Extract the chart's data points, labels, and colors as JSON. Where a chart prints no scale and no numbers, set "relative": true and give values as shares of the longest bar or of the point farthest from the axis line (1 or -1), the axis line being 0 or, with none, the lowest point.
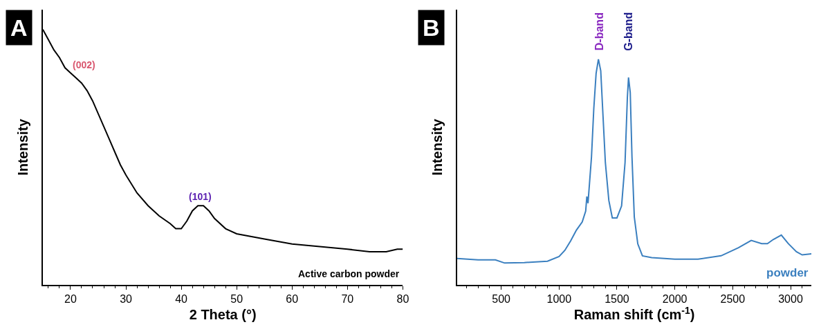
{
  "chart_data": [
    {
      "type": "line",
      "relative": true,
      "xlabel": "2 Theta (°)",
      "ylabel": "Intensity",
      "xlim": [
        15,
        80
      ],
      "xticks": [
        20,
        30,
        40,
        50,
        60,
        70,
        80
      ],
      "marker": "none",
      "line_style": "solid",
      "annotations": [
        "A",
        "(002)",
        "(101)",
        "Active carbon powder"
      ],
      "series": [
        {
          "color": "#000000",
          "x": [
            15,
            16,
            17,
            18,
            19,
            20,
            21,
            22,
            23,
            24,
            25,
            26,
            27,
            28,
            29,
            30,
            32,
            34,
            36,
            38,
            39,
            40,
            41,
            42,
            43,
            44,
            45,
            46,
            48,
            50,
            55,
            60,
            65,
            70,
            74,
            77,
            79,
            80
          ],
          "values": [
            1.0,
            0.96,
            0.92,
            0.89,
            0.85,
            0.83,
            0.81,
            0.79,
            0.76,
            0.72,
            0.67,
            0.62,
            0.57,
            0.52,
            0.47,
            0.43,
            0.36,
            0.31,
            0.27,
            0.24,
            0.22,
            0.22,
            0.25,
            0.29,
            0.31,
            0.31,
            0.29,
            0.26,
            0.22,
            0.2,
            0.18,
            0.16,
            0.15,
            0.14,
            0.13,
            0.13,
            0.14,
            0.14
          ]
        }
      ]
    },
    {
      "type": "line",
      "relative": true,
      "xlabel": "Raman shift (cm$^{-1}$)",
      "ylabel": "Intensity",
      "xlim": [
        120,
        3180
      ],
      "xticks": [
        500,
        1000,
        1500,
        2000,
        2500,
        3000
      ],
      "marker": "none",
      "line_style": "solid",
      "annotations": [
        "B",
        "D-band",
        "G-band",
        "powder"
      ],
      "series": [
        {
          "color": "#3a7fbf",
          "x": [
            120,
            300,
            450,
            530,
            700,
            900,
            1000,
            1050,
            1100,
            1150,
            1200,
            1230,
            1240,
            1250,
            1280,
            1300,
            1320,
            1340,
            1360,
            1380,
            1400,
            1430,
            1460,
            1500,
            1540,
            1570,
            1590,
            1600,
            1615,
            1630,
            1650,
            1680,
            1720,
            1800,
            2000,
            2200,
            2400,
            2550,
            2660,
            2750,
            2800,
            2850,
            2920,
            2980,
            3050,
            3100,
            3180
          ],
          "values": [
            0.117,
            0.111,
            0.111,
            0.097,
            0.099,
            0.105,
            0.126,
            0.153,
            0.195,
            0.243,
            0.279,
            0.327,
            0.392,
            0.362,
            0.566,
            0.781,
            0.937,
            1.0,
            0.949,
            0.745,
            0.542,
            0.374,
            0.297,
            0.297,
            0.35,
            0.542,
            0.829,
            0.919,
            0.852,
            0.566,
            0.301,
            0.182,
            0.129,
            0.121,
            0.114,
            0.114,
            0.129,
            0.165,
            0.197,
            0.183,
            0.183,
            0.201,
            0.221,
            0.183,
            0.147,
            0.133,
            0.138
          ]
        }
      ]
    }
  ]
}
